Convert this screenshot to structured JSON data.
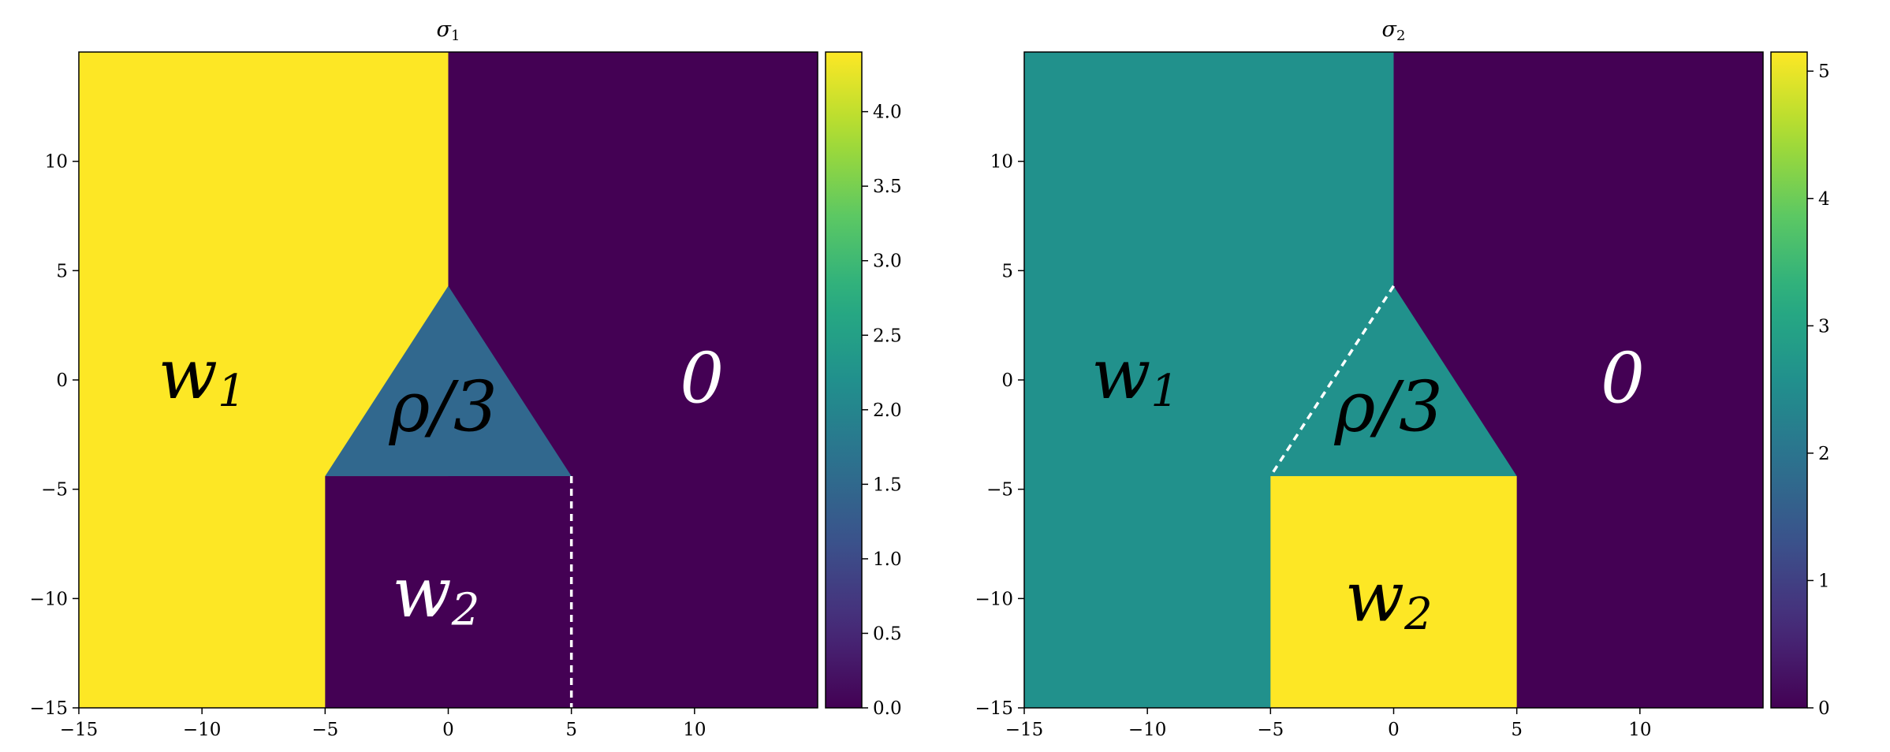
{
  "chart_data": [
    {
      "type": "heatmap",
      "title": "σ",
      "title_sub": "1",
      "xlim": [
        -15,
        15
      ],
      "ylim": [
        -15,
        15
      ],
      "xticks": [
        -15,
        -10,
        -5,
        0,
        5,
        10
      ],
      "yticks": [
        -15,
        -10,
        -5,
        0,
        5,
        10
      ],
      "colorbar": {
        "min": 0,
        "max": 4.4,
        "ticks": [
          0.0,
          0.5,
          1.0,
          1.5,
          2.0,
          2.5,
          3.0,
          3.5,
          4.0
        ],
        "decimals": 1
      },
      "regions": [
        {
          "name": "w1",
          "value": 4.4,
          "color": "#fde725"
        },
        {
          "name": "0",
          "value": 0.0,
          "color": "#440154"
        },
        {
          "name": "w2",
          "value": 0.0,
          "color": "#440154"
        },
        {
          "name": "rho/3",
          "value": 1.47,
          "color": "#31688e"
        }
      ],
      "labels": [
        {
          "text": "w",
          "sub": "1",
          "x": -10,
          "y": 0,
          "color": "#000000"
        },
        {
          "text": "ρ/3",
          "x": -0.2,
          "y": -1.5,
          "color": "#000000"
        },
        {
          "text": "0",
          "x": 10.3,
          "y": -0.2,
          "color": "#ffffff"
        },
        {
          "text": "w",
          "sub": "2",
          "x": -0.5,
          "y": -10,
          "color": "#ffffff"
        }
      ],
      "dashed_line": {
        "points": [
          [
            5,
            -4.4
          ],
          [
            5,
            -15
          ]
        ]
      }
    },
    {
      "type": "heatmap",
      "title": "σ",
      "title_sub": "2",
      "xlim": [
        -15,
        15
      ],
      "ylim": [
        -15,
        15
      ],
      "xticks": [
        -15,
        -10,
        -5,
        0,
        5,
        10
      ],
      "yticks": [
        -15,
        -10,
        -5,
        0,
        5,
        10
      ],
      "colorbar": {
        "min": 0,
        "max": 5.15,
        "ticks": [
          0,
          1,
          2,
          3,
          4,
          5
        ],
        "decimals": 0
      },
      "regions": [
        {
          "name": "w1",
          "value": 2.6,
          "color": "#21918c"
        },
        {
          "name": "0",
          "value": 0.0,
          "color": "#440154"
        },
        {
          "name": "w2",
          "value": 5.15,
          "color": "#fde725"
        },
        {
          "name": "rho/3",
          "value": 2.6,
          "color": "#21918c"
        }
      ],
      "labels": [
        {
          "text": "w",
          "sub": "1",
          "x": -10.5,
          "y": 0,
          "color": "#000000"
        },
        {
          "text": "ρ/3",
          "x": -0.2,
          "y": -1.5,
          "color": "#000000"
        },
        {
          "text": "0",
          "x": 9.3,
          "y": -0.2,
          "color": "#ffffff"
        },
        {
          "text": "w",
          "sub": "2",
          "x": -0.2,
          "y": -10.2,
          "color": "#000000"
        }
      ],
      "dashed_line": {
        "points": [
          [
            0,
            4.3
          ],
          [
            -5,
            -4.4
          ]
        ]
      }
    }
  ]
}
